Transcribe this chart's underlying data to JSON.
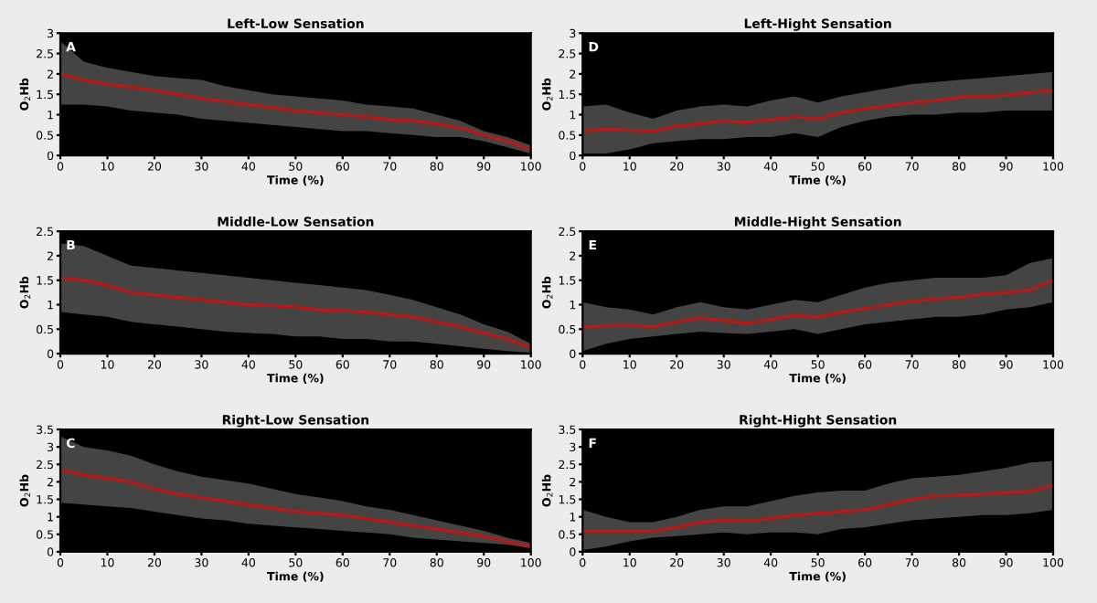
{
  "chart_data": [
    {
      "type": "line",
      "title": "Left-Low Sensation",
      "xlabel": "Time (%)",
      "ylabel": "O$_{2}$Hb",
      "annotations": [
        "A"
      ],
      "x": [
        0,
        5,
        10,
        15,
        20,
        25,
        30,
        35,
        40,
        45,
        50,
        55,
        60,
        65,
        70,
        75,
        80,
        85,
        90,
        95,
        100
      ],
      "xlim": [
        0,
        100
      ],
      "xticks": [
        0,
        10,
        20,
        30,
        40,
        50,
        60,
        70,
        80,
        90,
        100
      ],
      "ylim": [
        0,
        3
      ],
      "yticks": [
        0,
        0.5,
        1,
        1.5,
        2,
        2.5,
        3
      ],
      "grid": false,
      "series": [
        {
          "color": "#b01c1c",
          "values": [
            2.0,
            1.85,
            1.75,
            1.68,
            1.6,
            1.5,
            1.4,
            1.33,
            1.25,
            1.18,
            1.1,
            1.05,
            1.0,
            0.95,
            0.88,
            0.85,
            0.78,
            0.68,
            0.5,
            0.35,
            0.15
          ],
          "upper": [
            2.8,
            2.3,
            2.15,
            2.05,
            1.95,
            1.9,
            1.85,
            1.7,
            1.6,
            1.5,
            1.45,
            1.4,
            1.35,
            1.25,
            1.2,
            1.15,
            1.0,
            0.85,
            0.6,
            0.45,
            0.25
          ],
          "lower": [
            1.25,
            1.25,
            1.2,
            1.1,
            1.05,
            1.0,
            0.9,
            0.85,
            0.8,
            0.75,
            0.7,
            0.65,
            0.6,
            0.6,
            0.55,
            0.5,
            0.45,
            0.45,
            0.35,
            0.2,
            0.05
          ]
        }
      ]
    },
    {
      "type": "line",
      "title": "Left-Hight Sensation",
      "xlabel": "Time (%)",
      "ylabel": "O$_{2}$Hb",
      "annotations": [
        "D"
      ],
      "x": [
        0,
        5,
        10,
        15,
        20,
        25,
        30,
        35,
        40,
        45,
        50,
        55,
        60,
        65,
        70,
        75,
        80,
        85,
        90,
        95,
        100
      ],
      "xlim": [
        0,
        100
      ],
      "xticks": [
        0,
        10,
        20,
        30,
        40,
        50,
        60,
        70,
        80,
        90,
        100
      ],
      "ylim": [
        0,
        3
      ],
      "yticks": [
        0,
        0.5,
        1,
        1.5,
        2,
        2.5,
        3
      ],
      "grid": false,
      "series": [
        {
          "color": "#b01c1c",
          "values": [
            0.6,
            0.65,
            0.62,
            0.6,
            0.72,
            0.78,
            0.85,
            0.82,
            0.88,
            0.95,
            0.9,
            1.05,
            1.15,
            1.22,
            1.3,
            1.35,
            1.43,
            1.45,
            1.48,
            1.55,
            1.6
          ],
          "upper": [
            1.2,
            1.25,
            1.05,
            0.9,
            1.1,
            1.2,
            1.25,
            1.2,
            1.35,
            1.45,
            1.3,
            1.45,
            1.55,
            1.65,
            1.75,
            1.8,
            1.85,
            1.9,
            1.95,
            2.0,
            2.05
          ],
          "lower": [
            0.05,
            0.05,
            0.15,
            0.3,
            0.35,
            0.4,
            0.4,
            0.45,
            0.45,
            0.55,
            0.45,
            0.7,
            0.85,
            0.95,
            1.0,
            1.0,
            1.05,
            1.05,
            1.1,
            1.1,
            1.1
          ]
        }
      ]
    },
    {
      "type": "line",
      "title": "Middle-Low Sensation",
      "xlabel": "Time (%)",
      "ylabel": "O$_{2}$Hb",
      "annotations": [
        "B"
      ],
      "x": [
        0,
        5,
        10,
        15,
        20,
        25,
        30,
        35,
        40,
        45,
        50,
        55,
        60,
        65,
        70,
        75,
        80,
        85,
        90,
        95,
        100
      ],
      "xlim": [
        0,
        100
      ],
      "xticks": [
        0,
        10,
        20,
        30,
        40,
        50,
        60,
        70,
        80,
        90,
        100
      ],
      "ylim": [
        0,
        2.5
      ],
      "yticks": [
        0,
        0.5,
        1,
        1.5,
        2,
        2.5
      ],
      "grid": false,
      "series": [
        {
          "color": "#b01c1c",
          "values": [
            1.55,
            1.5,
            1.4,
            1.25,
            1.2,
            1.15,
            1.1,
            1.05,
            1.0,
            0.98,
            0.95,
            0.9,
            0.88,
            0.85,
            0.8,
            0.75,
            0.65,
            0.55,
            0.42,
            0.3,
            0.12
          ],
          "upper": [
            2.25,
            2.2,
            2.0,
            1.8,
            1.75,
            1.7,
            1.65,
            1.6,
            1.55,
            1.5,
            1.45,
            1.4,
            1.35,
            1.3,
            1.2,
            1.1,
            0.95,
            0.8,
            0.6,
            0.45,
            0.2
          ],
          "lower": [
            0.85,
            0.8,
            0.75,
            0.65,
            0.6,
            0.55,
            0.5,
            0.45,
            0.42,
            0.4,
            0.35,
            0.35,
            0.3,
            0.3,
            0.25,
            0.25,
            0.2,
            0.15,
            0.1,
            0.05,
            0.02
          ]
        }
      ]
    },
    {
      "type": "line",
      "title": "Middle-Hight Sensation",
      "xlabel": "Time (%)",
      "ylabel": "O$_{2}$Hb",
      "annotations": [
        "E"
      ],
      "x": [
        0,
        5,
        10,
        15,
        20,
        25,
        30,
        35,
        40,
        45,
        50,
        55,
        60,
        65,
        70,
        75,
        80,
        85,
        90,
        95,
        100
      ],
      "xlim": [
        0,
        100
      ],
      "xticks": [
        0,
        10,
        20,
        30,
        40,
        50,
        60,
        70,
        80,
        90,
        100
      ],
      "ylim": [
        0,
        2.5
      ],
      "yticks": [
        0,
        0.5,
        1,
        1.5,
        2,
        2.5
      ],
      "grid": false,
      "series": [
        {
          "color": "#b01c1c",
          "values": [
            0.55,
            0.57,
            0.58,
            0.55,
            0.65,
            0.73,
            0.68,
            0.62,
            0.7,
            0.78,
            0.75,
            0.85,
            0.92,
            1.0,
            1.07,
            1.12,
            1.15,
            1.22,
            1.25,
            1.3,
            1.5
          ],
          "upper": [
            1.05,
            0.95,
            0.9,
            0.8,
            0.95,
            1.05,
            0.95,
            0.9,
            1.0,
            1.1,
            1.05,
            1.2,
            1.35,
            1.45,
            1.5,
            1.55,
            1.55,
            1.55,
            1.6,
            1.85,
            1.95
          ],
          "lower": [
            0.05,
            0.2,
            0.3,
            0.35,
            0.4,
            0.45,
            0.42,
            0.4,
            0.45,
            0.5,
            0.4,
            0.5,
            0.6,
            0.65,
            0.7,
            0.75,
            0.75,
            0.8,
            0.9,
            0.95,
            1.05
          ]
        }
      ]
    },
    {
      "type": "line",
      "title": "Right-Low Sensation",
      "xlabel": "Time (%)",
      "ylabel": "O$_{2}$Hb",
      "annotations": [
        "C"
      ],
      "x": [
        0,
        5,
        10,
        15,
        20,
        25,
        30,
        35,
        40,
        45,
        50,
        55,
        60,
        65,
        70,
        75,
        80,
        85,
        90,
        95,
        100
      ],
      "xlim": [
        0,
        100
      ],
      "xticks": [
        0,
        10,
        20,
        30,
        40,
        50,
        60,
        70,
        80,
        90,
        100
      ],
      "ylim": [
        0,
        3.5
      ],
      "yticks": [
        0,
        0.5,
        1,
        1.5,
        2,
        2.5,
        3,
        3.5
      ],
      "grid": false,
      "series": [
        {
          "color": "#b01c1c",
          "values": [
            2.35,
            2.2,
            2.1,
            2.0,
            1.8,
            1.65,
            1.55,
            1.45,
            1.35,
            1.25,
            1.15,
            1.1,
            1.05,
            0.95,
            0.85,
            0.75,
            0.65,
            0.55,
            0.45,
            0.3,
            0.15
          ],
          "upper": [
            3.3,
            3.0,
            2.9,
            2.75,
            2.5,
            2.3,
            2.15,
            2.05,
            1.95,
            1.8,
            1.65,
            1.55,
            1.45,
            1.3,
            1.2,
            1.05,
            0.9,
            0.75,
            0.6,
            0.4,
            0.25
          ],
          "lower": [
            1.4,
            1.35,
            1.3,
            1.25,
            1.15,
            1.05,
            0.95,
            0.9,
            0.8,
            0.75,
            0.7,
            0.65,
            0.6,
            0.55,
            0.5,
            0.4,
            0.35,
            0.3,
            0.25,
            0.2,
            0.1
          ]
        }
      ]
    },
    {
      "type": "line",
      "title": "Right-Hight Sensation",
      "xlabel": "Time (%)",
      "ylabel": "O$_{2}$Hb",
      "annotations": [
        "F"
      ],
      "x": [
        0,
        5,
        10,
        15,
        20,
        25,
        30,
        35,
        40,
        45,
        50,
        55,
        60,
        65,
        70,
        75,
        80,
        85,
        90,
        95,
        100
      ],
      "xlim": [
        0,
        100
      ],
      "xticks": [
        0,
        10,
        20,
        30,
        40,
        50,
        60,
        70,
        80,
        90,
        100
      ],
      "ylim": [
        0,
        3.5
      ],
      "yticks": [
        0,
        0.5,
        1,
        1.5,
        2,
        2.5,
        3,
        3.5
      ],
      "grid": false,
      "series": [
        {
          "color": "#b01c1c",
          "values": [
            0.6,
            0.6,
            0.6,
            0.6,
            0.7,
            0.85,
            0.9,
            0.88,
            0.95,
            1.05,
            1.1,
            1.15,
            1.2,
            1.35,
            1.5,
            1.6,
            1.62,
            1.65,
            1.7,
            1.72,
            1.9
          ],
          "upper": [
            1.2,
            1.0,
            0.85,
            0.85,
            1.0,
            1.2,
            1.3,
            1.3,
            1.45,
            1.6,
            1.7,
            1.75,
            1.75,
            1.95,
            2.1,
            2.15,
            2.2,
            2.3,
            2.4,
            2.55,
            2.6
          ],
          "lower": [
            0.05,
            0.15,
            0.3,
            0.4,
            0.45,
            0.5,
            0.55,
            0.5,
            0.55,
            0.55,
            0.5,
            0.65,
            0.7,
            0.8,
            0.9,
            0.95,
            1.0,
            1.05,
            1.05,
            1.1,
            1.2
          ]
        }
      ]
    }
  ]
}
